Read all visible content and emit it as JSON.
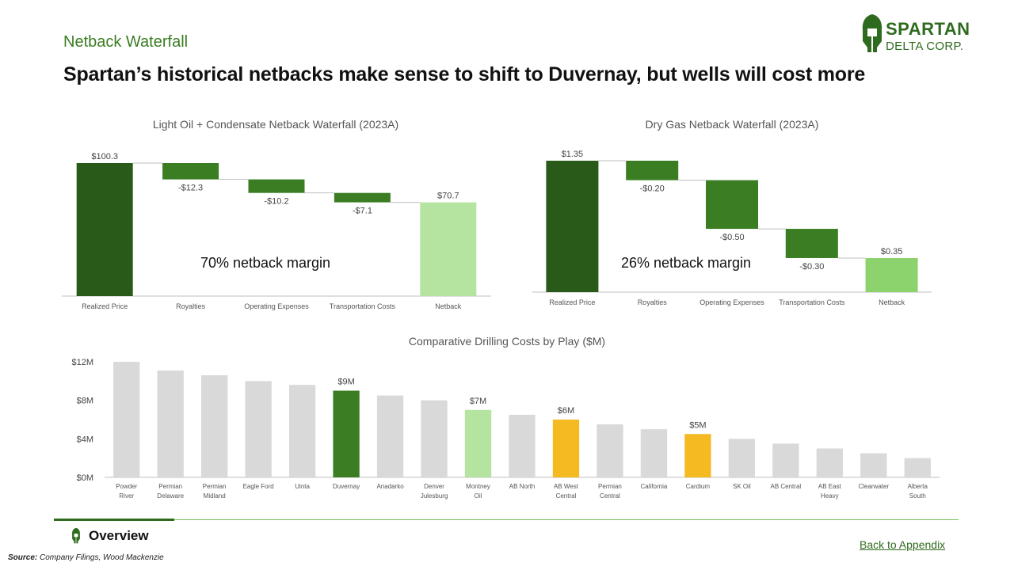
{
  "header": {
    "section": "Netback Waterfall",
    "headline": "Spartan’s historical netbacks make sense to shift to Duvernay, but wells will cost more"
  },
  "logo": {
    "line1": "SPARTAN",
    "line2": "DELTA CORP."
  },
  "colors": {
    "dark_green": "#2a5a19",
    "mid_green": "#3a7d22",
    "light_green": "#b5e3a0",
    "bright_light_green": "#8cd36e",
    "gray": "#d9d9d9",
    "gold": "#f5b921"
  },
  "chart_data": [
    {
      "type": "waterfall",
      "title": "Light Oil + Condensate Netback Waterfall (2023A)",
      "categories": [
        "Realized Price",
        "Royalties",
        "Operating Expenses",
        "Transportation Costs",
        "Netback"
      ],
      "values": [
        100.3,
        -12.3,
        -10.2,
        -7.1,
        70.7
      ],
      "labels": [
        "$100.3",
        "-$12.3",
        "-$10.2",
        "-$7.1",
        "$70.7"
      ],
      "annotation": "70% netback margin",
      "ylim": [
        0,
        100.3
      ]
    },
    {
      "type": "waterfall",
      "title": "Dry Gas Netback Waterfall (2023A)",
      "categories": [
        "Realized Price",
        "Royalties",
        "Operating Expenses",
        "Transportation Costs",
        "Netback"
      ],
      "values": [
        1.35,
        -0.2,
        -0.5,
        -0.3,
        0.35
      ],
      "labels": [
        "$1.35",
        "-$0.20",
        "-$0.50",
        "-$0.30",
        "$0.35"
      ],
      "annotation": "26% netback margin",
      "ylim": [
        0,
        1.35
      ]
    },
    {
      "type": "bar",
      "title": "Comparative Drilling Costs by Play ($M)",
      "categories": [
        "Powder River",
        "Permian Delaware",
        "Permian Midland",
        "Eagle Ford",
        "Uinta",
        "Duvernay",
        "Anadarko",
        "Denver Julesburg",
        "Montney Oil",
        "AB North",
        "AB West Central",
        "Permian Central",
        "California",
        "Cardium",
        "SK Oil",
        "AB Central",
        "AB East Heavy",
        "Clearwater",
        "Alberta South"
      ],
      "values": [
        12.0,
        11.1,
        10.6,
        10.0,
        9.6,
        9.0,
        8.5,
        8.0,
        7.0,
        6.5,
        6.0,
        5.5,
        5.0,
        4.5,
        4.0,
        3.5,
        3.0,
        2.5,
        2.0
      ],
      "highlights": {
        "Duvernay": "$9M",
        "Montney Oil": "$7M",
        "AB West Central": "$6M",
        "Cardium": "$5M"
      },
      "yticks": [
        "$0M",
        "$4M",
        "$8M",
        "$12M"
      ],
      "ylim": [
        0,
        12
      ]
    }
  ],
  "footer": {
    "overview": "Overview",
    "back_link": "Back to Appendix",
    "source_label": "Source:",
    "source_text": "Company Filings, Wood Mackenzie"
  }
}
